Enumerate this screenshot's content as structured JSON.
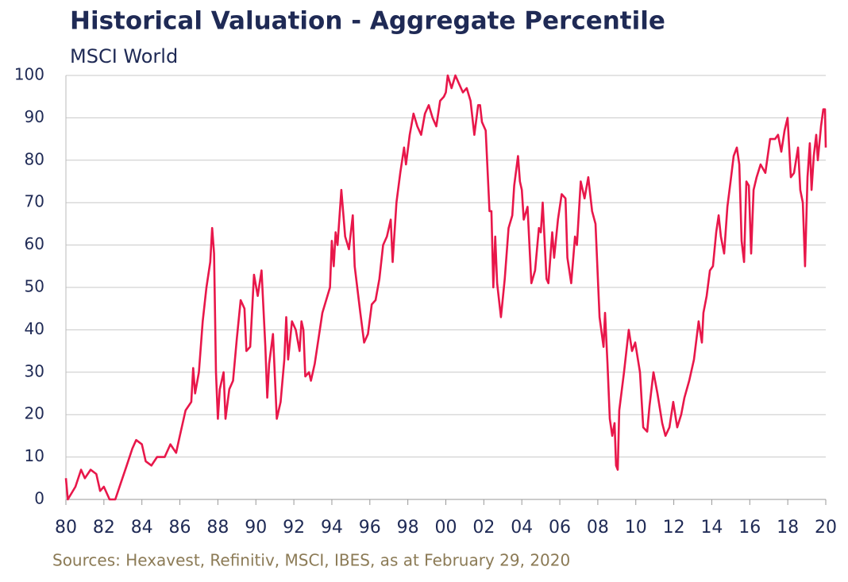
{
  "chart_data": {
    "type": "line",
    "title": "Historical Valuation - Aggregate Percentile",
    "subtitle": "MSCI World",
    "source": "Sources: Hexavest, Refinitiv, MSCI, IBES, as at February 29, 2020",
    "color": "#e8174a",
    "grid": true,
    "xlim": [
      1980,
      2020
    ],
    "ylim": [
      0,
      100
    ],
    "yticks": [
      0,
      10,
      20,
      30,
      40,
      50,
      60,
      70,
      80,
      90,
      100
    ],
    "xticks": [
      {
        "value": 1980,
        "label": "80"
      },
      {
        "value": 1982,
        "label": "82"
      },
      {
        "value": 1984,
        "label": "84"
      },
      {
        "value": 1986,
        "label": "86"
      },
      {
        "value": 1988,
        "label": "88"
      },
      {
        "value": 1990,
        "label": "90"
      },
      {
        "value": 1992,
        "label": "92"
      },
      {
        "value": 1994,
        "label": "94"
      },
      {
        "value": 1996,
        "label": "96"
      },
      {
        "value": 1998,
        "label": "98"
      },
      {
        "value": 2000,
        "label": "00"
      },
      {
        "value": 2002,
        "label": "02"
      },
      {
        "value": 2004,
        "label": "04"
      },
      {
        "value": 2006,
        "label": "06"
      },
      {
        "value": 2008,
        "label": "08"
      },
      {
        "value": 2010,
        "label": "10"
      },
      {
        "value": 2012,
        "label": "12"
      },
      {
        "value": 2014,
        "label": "14"
      },
      {
        "value": 2016,
        "label": "16"
      },
      {
        "value": 2018,
        "label": "18"
      },
      {
        "value": 2020,
        "label": "20"
      }
    ],
    "x": [
      1980.0,
      1980.1,
      1980.5,
      1980.8,
      1981.0,
      1981.3,
      1981.6,
      1981.8,
      1982.0,
      1982.3,
      1982.6,
      1982.9,
      1983.2,
      1983.5,
      1983.7,
      1984.0,
      1984.2,
      1984.5,
      1984.8,
      1985.2,
      1985.5,
      1985.8,
      1986.0,
      1986.3,
      1986.6,
      1986.7,
      1986.8,
      1987.0,
      1987.2,
      1987.4,
      1987.6,
      1987.7,
      1987.8,
      1987.9,
      1988.0,
      1988.1,
      1988.3,
      1988.4,
      1988.6,
      1988.8,
      1989.0,
      1989.2,
      1989.4,
      1989.5,
      1989.7,
      1989.9,
      1990.1,
      1990.3,
      1990.5,
      1990.6,
      1990.7,
      1990.9,
      1991.1,
      1991.3,
      1991.5,
      1991.6,
      1991.7,
      1991.9,
      1992.1,
      1992.3,
      1992.4,
      1992.5,
      1992.6,
      1992.8,
      1992.9,
      1993.1,
      1993.3,
      1993.5,
      1993.7,
      1993.9,
      1994.0,
      1994.1,
      1994.2,
      1994.3,
      1994.5,
      1994.7,
      1994.9,
      1995.1,
      1995.2,
      1995.5,
      1995.7,
      1995.9,
      1996.1,
      1996.3,
      1996.5,
      1996.7,
      1996.9,
      1997.1,
      1997.2,
      1997.4,
      1997.6,
      1997.8,
      1997.9,
      1998.1,
      1998.3,
      1998.5,
      1998.7,
      1998.9,
      1999.1,
      1999.3,
      1999.5,
      1999.7,
      1999.9,
      2000.0,
      2000.1,
      2000.3,
      2000.5,
      2000.7,
      2000.9,
      2001.1,
      2001.3,
      2001.5,
      2001.7,
      2001.8,
      2001.9,
      2002.1,
      2002.3,
      2002.4,
      2002.5,
      2002.6,
      2002.7,
      2002.9,
      2003.1,
      2003.3,
      2003.5,
      2003.6,
      2003.8,
      2003.9,
      2004.0,
      2004.1,
      2004.3,
      2004.5,
      2004.7,
      2004.9,
      2005.0,
      2005.1,
      2005.3,
      2005.4,
      2005.6,
      2005.7,
      2005.9,
      2006.1,
      2006.3,
      2006.4,
      2006.6,
      2006.8,
      2006.9,
      2007.1,
      2007.3,
      2007.5,
      2007.7,
      2007.88,
      2008.09,
      2008.3,
      2008.38,
      2008.51,
      2008.63,
      2008.76,
      2008.88,
      2008.96,
      2009.05,
      2009.13,
      2009.38,
      2009.63,
      2009.8,
      2009.97,
      2010.22,
      2010.39,
      2010.6,
      2010.72,
      2010.93,
      2011.14,
      2011.39,
      2011.56,
      2011.77,
      2011.97,
      2012.18,
      2012.39,
      2012.56,
      2012.81,
      2013.06,
      2013.31,
      2013.48,
      2013.56,
      2013.73,
      2013.9,
      2014.06,
      2014.23,
      2014.36,
      2014.48,
      2014.65,
      2014.82,
      2014.99,
      2015.15,
      2015.32,
      2015.45,
      2015.57,
      2015.7,
      2015.82,
      2015.95,
      2016.07,
      2016.2,
      2016.36,
      2016.57,
      2016.82,
      2017.07,
      2017.33,
      2017.49,
      2017.66,
      2017.83,
      2017.99,
      2018.16,
      2018.33,
      2018.54,
      2018.66,
      2018.79,
      2018.91,
      2019.04,
      2019.16,
      2019.25,
      2019.37,
      2019.5,
      2019.58,
      2019.75,
      2019.87,
      2019.96,
      2020.0
    ],
    "values": [
      5,
      0,
      3,
      7,
      5,
      7,
      6,
      2,
      3,
      0,
      0,
      4,
      8,
      12,
      14,
      13,
      9,
      8,
      10,
      10,
      13,
      11,
      15,
      21,
      23,
      31,
      25,
      30,
      42,
      50,
      56,
      64,
      58,
      30,
      19,
      26,
      30,
      19,
      26,
      28,
      38,
      47,
      45,
      35,
      36,
      53,
      48,
      54,
      36,
      24,
      32,
      39,
      19,
      23,
      33,
      43,
      33,
      42,
      40,
      35,
      42,
      40,
      29,
      30,
      28,
      32,
      38,
      44,
      47,
      50,
      61,
      55,
      63,
      60,
      73,
      62,
      59,
      67,
      55,
      44,
      37,
      39,
      46,
      47,
      52,
      60,
      62,
      66,
      56,
      70,
      77,
      83,
      79,
      86,
      91,
      88,
      86,
      91,
      93,
      90,
      88,
      94,
      95,
      96,
      100,
      97,
      100,
      98,
      96,
      97,
      94,
      86,
      93,
      93,
      89,
      87,
      68,
      68,
      50,
      62,
      51,
      43,
      52,
      64,
      67,
      74,
      81,
      75,
      73,
      66,
      69,
      51,
      54,
      64,
      63,
      70,
      52,
      51,
      63,
      57,
      66,
      72,
      71,
      57,
      51,
      62,
      60,
      75,
      71,
      76,
      68,
      65,
      43,
      36,
      44,
      32,
      19,
      15,
      18,
      8,
      7,
      21,
      30,
      40,
      35,
      37,
      30,
      17,
      16,
      22,
      30,
      25,
      18,
      15,
      17,
      23,
      17,
      20,
      24,
      28,
      33,
      42,
      37,
      44,
      48,
      54,
      55,
      63,
      67,
      62,
      58,
      69,
      75,
      81,
      83,
      79,
      61,
      56,
      75,
      74,
      58,
      73,
      76,
      79,
      77,
      85,
      85,
      86,
      82,
      87,
      90,
      76,
      77,
      83,
      73,
      70,
      55,
      76,
      84,
      73,
      81,
      86,
      80,
      88,
      92,
      92,
      83
    ]
  }
}
